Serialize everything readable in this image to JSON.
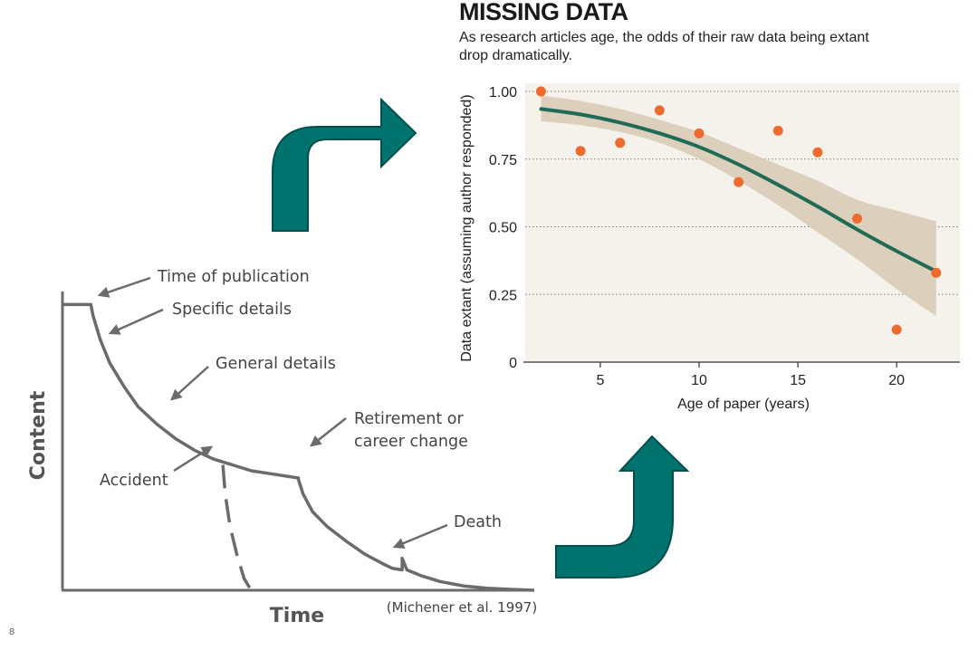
{
  "page_number": "8",
  "colors": {
    "teal": "#00736f",
    "teal_dark": "#004f4c",
    "curve": "#1f6b55",
    "band": "#d9ccb7",
    "panel": "#f4f2ea",
    "dot": "#ef6a2d",
    "line_gray": "#6b6b6b"
  },
  "icons": [
    "arrow-turn-right-icon",
    "arrow-turn-up-icon"
  ],
  "chart_data": [
    {
      "type": "scatter",
      "title": "MISSING DATA",
      "subtitle_lines": [
        "As research articles age, the odds of their raw data being extant",
        "drop dramatically."
      ],
      "xlabel": "Age of paper (years)",
      "ylabel": "Data extant (assuming author responded)",
      "xlim": [
        1.2,
        23.2
      ],
      "ylim": [
        0,
        1.0
      ],
      "xticks": [
        5,
        10,
        15,
        20
      ],
      "xtick_labels": [
        "5",
        "10",
        "15",
        "20"
      ],
      "yticks": [
        0,
        0.25,
        0.5,
        0.75,
        1.0
      ],
      "ytick_labels": [
        "0",
        "0.25",
        "0.50",
        "0.75",
        "1.00"
      ],
      "grid": "horizontal-dotted",
      "points": [
        {
          "x": 2,
          "y": 1.0
        },
        {
          "x": 4,
          "y": 0.78
        },
        {
          "x": 6,
          "y": 0.81
        },
        {
          "x": 8,
          "y": 0.93
        },
        {
          "x": 10,
          "y": 0.845
        },
        {
          "x": 12,
          "y": 0.665
        },
        {
          "x": 14,
          "y": 0.855
        },
        {
          "x": 16,
          "y": 0.775
        },
        {
          "x": 18,
          "y": 0.53
        },
        {
          "x": 20,
          "y": 0.12
        },
        {
          "x": 22,
          "y": 0.33
        }
      ],
      "fit": {
        "x": [
          2,
          4,
          6,
          8,
          10,
          12,
          14,
          16,
          18,
          20,
          22
        ],
        "y": [
          0.935,
          0.915,
          0.885,
          0.845,
          0.795,
          0.73,
          0.655,
          0.575,
          0.49,
          0.41,
          0.335
        ],
        "lower": [
          0.89,
          0.875,
          0.85,
          0.81,
          0.75,
          0.67,
          0.58,
          0.48,
          0.38,
          0.27,
          0.17
        ],
        "upper": [
          0.985,
          0.965,
          0.935,
          0.895,
          0.85,
          0.79,
          0.73,
          0.67,
          0.6,
          0.56,
          0.52
        ]
      }
    },
    {
      "type": "line",
      "title": "",
      "xlabel": "Time",
      "ylabel": "Content",
      "citation": "(Michener et al. 1997)",
      "xlim": [
        0,
        100
      ],
      "ylim": [
        0,
        100
      ],
      "series": [
        {
          "style": "solid",
          "x": [
            0,
            6,
            6.5,
            8,
            10,
            13,
            16,
            20,
            24,
            28,
            32,
            36,
            40,
            44,
            48,
            50,
            50,
            51,
            53,
            56,
            60,
            64,
            68,
            70,
            72,
            72,
            73,
            76,
            80,
            85,
            90,
            95,
            100
          ],
          "y": [
            98,
            98,
            94,
            86,
            78,
            70,
            63,
            57,
            52,
            48,
            45,
            43,
            41,
            40,
            39,
            38.5,
            38,
            33,
            27,
            22,
            17,
            12.5,
            9,
            7.5,
            7,
            11,
            7,
            5,
            3,
            1.5,
            0.7,
            0.3,
            0
          ]
        },
        {
          "style": "dashed",
          "x": [
            34,
            34.5,
            35.5,
            37,
            38.5,
            40
          ],
          "y": [
            43,
            33,
            22,
            12,
            4,
            0
          ]
        }
      ]
    }
  ],
  "annotations": {
    "time_of_publication": "Time of publication",
    "specific_details": "Specific details",
    "general_details": "General details",
    "retirement_line1": "Retirement or",
    "retirement_line2": "career change",
    "accident": "Accident",
    "death": "Death"
  }
}
